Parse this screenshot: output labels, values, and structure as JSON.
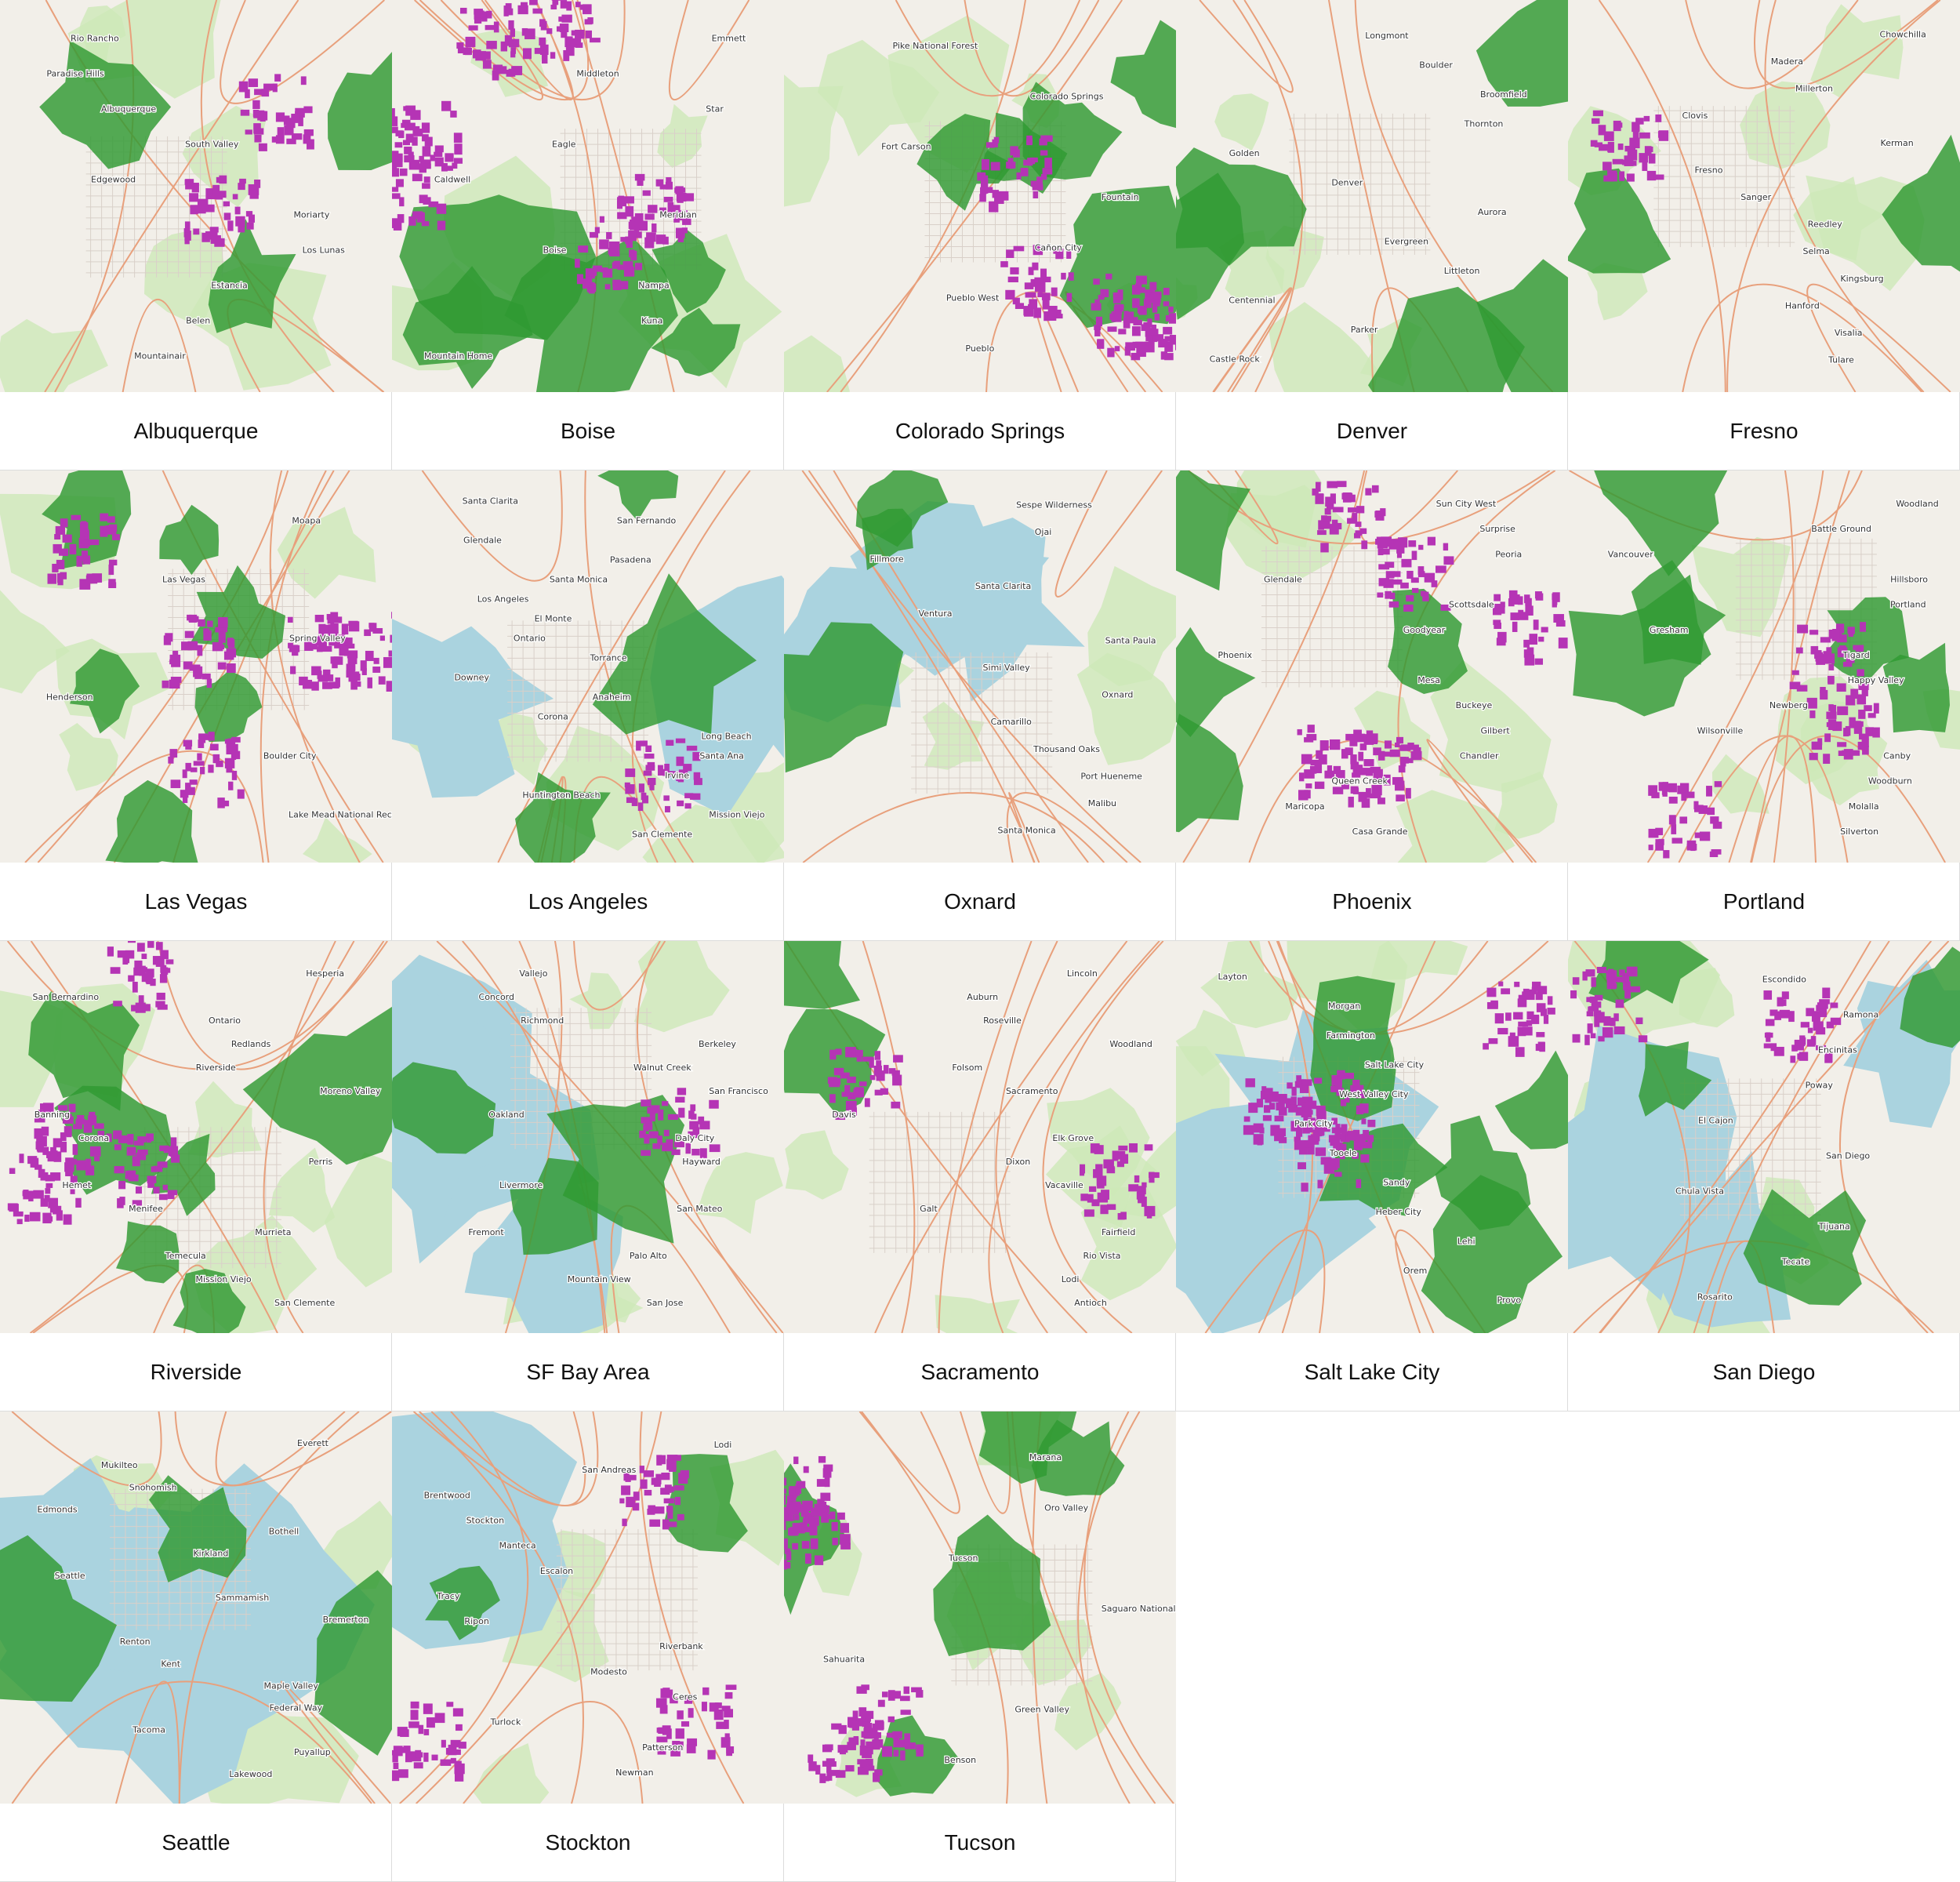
{
  "colors": {
    "land": "#f2efe9",
    "water": "#aad3df",
    "park": "#cde8b8",
    "green_overlay": "#2f9a32",
    "magenta_overlay": "#b534b5",
    "road": "#e8a07c",
    "city_grid": "#d9d0c9"
  },
  "maps": [
    {
      "name": "Albuquerque",
      "water": 0,
      "green": 3,
      "magenta": 2,
      "labels": [
        "Rio Rancho",
        "Paradise Hills",
        "Albuquerque",
        "South Valley",
        "Edgewood",
        "Moriarty",
        "Los Lunas",
        "Estancia",
        "Belen",
        "Mountainair"
      ]
    },
    {
      "name": "Boise",
      "water": 0,
      "green": 5,
      "magenta": 6,
      "labels": [
        "Emmett",
        "Middleton",
        "Star",
        "Eagle",
        "Caldwell",
        "Meridian",
        "Boise",
        "Nampa",
        "Kuna",
        "Mountain Home"
      ]
    },
    {
      "name": "Colorado Springs",
      "water": 0,
      "green": 5,
      "magenta": 4,
      "labels": [
        "Pike National Forest",
        "Colorado Springs",
        "Fort Carson",
        "Fountain",
        "Cañon City",
        "Pueblo West",
        "Pueblo"
      ]
    },
    {
      "name": "Denver",
      "water": 0,
      "green": 5,
      "magenta": 0,
      "labels": [
        "Longmont",
        "Boulder",
        "Broomfield",
        "Thornton",
        "Golden",
        "Denver",
        "Aurora",
        "Evergreen",
        "Littleton",
        "Centennial",
        "Parker",
        "Castle Rock"
      ]
    },
    {
      "name": "Fresno",
      "water": 0,
      "green": 2,
      "magenta": 1,
      "labels": [
        "Chowchilla",
        "Madera",
        "Millerton",
        "Clovis",
        "Kerman",
        "Fresno",
        "Sanger",
        "Reedley",
        "Selma",
        "Kingsburg",
        "Hanford",
        "Visalia",
        "Tulare"
      ]
    },
    {
      "name": "Las Vegas",
      "water": 0,
      "green": 6,
      "magenta": 5,
      "labels": [
        "Moapa",
        "Las Vegas",
        "Spring Valley",
        "Henderson",
        "Boulder City",
        "Lake Mead National Recreation Area"
      ]
    },
    {
      "name": "Los Angeles",
      "water": 2,
      "green": 3,
      "magenta": 1,
      "labels": [
        "Santa Clarita",
        "San Fernando",
        "Glendale",
        "Pasadena",
        "Santa Monica",
        "Los Angeles",
        "El Monte",
        "Ontario",
        "Torrance",
        "Downey",
        "Anaheim",
        "Corona",
        "Long Beach",
        "Santa Ana",
        "Irvine",
        "Huntington Beach",
        "Mission Viejo",
        "San Clemente"
      ]
    },
    {
      "name": "Oxnard",
      "water": 3,
      "green": 3,
      "magenta": 0,
      "labels": [
        "Sespe Wilderness",
        "Ojai",
        "Fillmore",
        "Santa Clarita",
        "Ventura",
        "Santa Paula",
        "Simi Valley",
        "Oxnard",
        "Camarillo",
        "Thousand Oaks",
        "Port Hueneme",
        "Malibu",
        "Santa Monica"
      ]
    },
    {
      "name": "Phoenix",
      "water": 0,
      "green": 4,
      "magenta": 5,
      "labels": [
        "Sun City West",
        "Surprise",
        "Peoria",
        "Glendale",
        "Scottsdale",
        "Goodyear",
        "Phoenix",
        "Mesa",
        "Buckeye",
        "Gilbert",
        "Chandler",
        "Queen Creek",
        "Maricopa",
        "Casa Grande"
      ]
    },
    {
      "name": "Portland",
      "water": 0,
      "green": 5,
      "magenta": 3,
      "labels": [
        "Woodland",
        "Battle Ground",
        "Vancouver",
        "Hillsboro",
        "Portland",
        "Gresham",
        "Tigard",
        "Happy Valley",
        "Newberg",
        "Wilsonville",
        "Canby",
        "Woodburn",
        "Molalla",
        "Silverton"
      ]
    },
    {
      "name": "Riverside",
      "water": 0,
      "green": 6,
      "magenta": 4,
      "labels": [
        "Hesperia",
        "San Bernardino",
        "Ontario",
        "Redlands",
        "Riverside",
        "Moreno Valley",
        "Banning",
        "Corona",
        "Perris",
        "Hemet",
        "Menifee",
        "Murrieta",
        "Temecula",
        "Mission Viejo",
        "San Clemente"
      ]
    },
    {
      "name": "SF Bay Area",
      "water": 3,
      "green": 3,
      "magenta": 1,
      "labels": [
        "Vallejo",
        "Concord",
        "Richmond",
        "Berkeley",
        "Walnut Creek",
        "San Francisco",
        "Oakland",
        "Daly City",
        "Hayward",
        "Livermore",
        "San Mateo",
        "Fremont",
        "Palo Alto",
        "Mountain View",
        "San Jose"
      ]
    },
    {
      "name": "Sacramento",
      "water": 0,
      "green": 2,
      "magenta": 2,
      "labels": [
        "Lincoln",
        "Auburn",
        "Roseville",
        "Woodland",
        "Folsom",
        "Sacramento",
        "Davis",
        "Elk Grove",
        "Dixon",
        "Vacaville",
        "Galt",
        "Fairfield",
        "Rio Vista",
        "Lodi",
        "Antioch"
      ]
    },
    {
      "name": "Salt Lake City",
      "water": 2,
      "green": 5,
      "magenta": 4,
      "labels": [
        "Layton",
        "Morgan",
        "Farmington",
        "Salt Lake City",
        "West Valley City",
        "Park City",
        "Tooele",
        "Sandy",
        "Heber City",
        "Lehi",
        "Orem",
        "Provo"
      ]
    },
    {
      "name": "San Diego",
      "water": 3,
      "green": 4,
      "magenta": 2,
      "labels": [
        "Escondido",
        "Ramona",
        "Encinitas",
        "Poway",
        "El Cajon",
        "San Diego",
        "Chula Vista",
        "Tijuana",
        "Tecate",
        "Rosarito"
      ]
    },
    {
      "name": "Seattle",
      "water": 3,
      "green": 3,
      "magenta": 0,
      "labels": [
        "Everett",
        "Mukilteo",
        "Snohomish",
        "Edmonds",
        "Bothell",
        "Kirkland",
        "Seattle",
        "Sammamish",
        "Bremerton",
        "Renton",
        "Kent",
        "Maple Valley",
        "Federal Way",
        "Tacoma",
        "Puyallup",
        "Lakewood"
      ]
    },
    {
      "name": "Stockton",
      "water": 1,
      "green": 2,
      "magenta": 3,
      "labels": [
        "Lodi",
        "San Andreas",
        "Brentwood",
        "Stockton",
        "Manteca",
        "Escalon",
        "Tracy",
        "Ripon",
        "Riverbank",
        "Modesto",
        "Ceres",
        "Turlock",
        "Patterson",
        "Newman"
      ]
    },
    {
      "name": "Tucson",
      "water": 0,
      "green": 5,
      "magenta": 4,
      "labels": [
        "Marana",
        "Oro Valley",
        "Tucson",
        "Saguaro National Park",
        "Sahuarita",
        "Green Valley",
        "Benson"
      ]
    }
  ]
}
